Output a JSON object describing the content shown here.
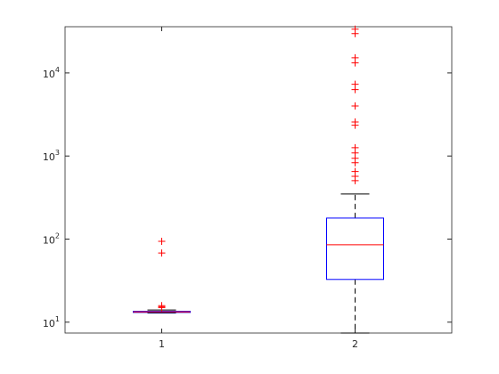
{
  "chart_data": {
    "type": "box",
    "log_y": true,
    "categories": [
      "1",
      "2"
    ],
    "boxes": [
      {
        "whisker_low": 12.9,
        "q1": 13.1,
        "median": 13.3,
        "q3": 13.5,
        "whisker_high": 14.0,
        "outliers": [
          94,
          68,
          15.8,
          15.3,
          15.0
        ]
      },
      {
        "whisker_low": 7.4,
        "q1": 32.7,
        "median": 85.5,
        "q3": 179,
        "whisker_high": 349,
        "outliers": [
          33600,
          29700,
          15200,
          13200,
          7300,
          6300,
          4000,
          2570,
          2350,
          1260,
          1090,
          940,
          830,
          650,
          570,
          505
        ]
      }
    ],
    "box_color": "#0000ff",
    "median_color": "#ff0000",
    "whisker_color": "#000000",
    "outlier_color": "#ff0000",
    "ylim": [
      7.4,
      36000
    ],
    "yticks": [
      {
        "value": 10,
        "label": "10^1"
      },
      {
        "value": 100,
        "label": "10^2"
      },
      {
        "value": 1000,
        "label": "10^3"
      },
      {
        "value": 10000,
        "label": "10^4"
      }
    ]
  }
}
